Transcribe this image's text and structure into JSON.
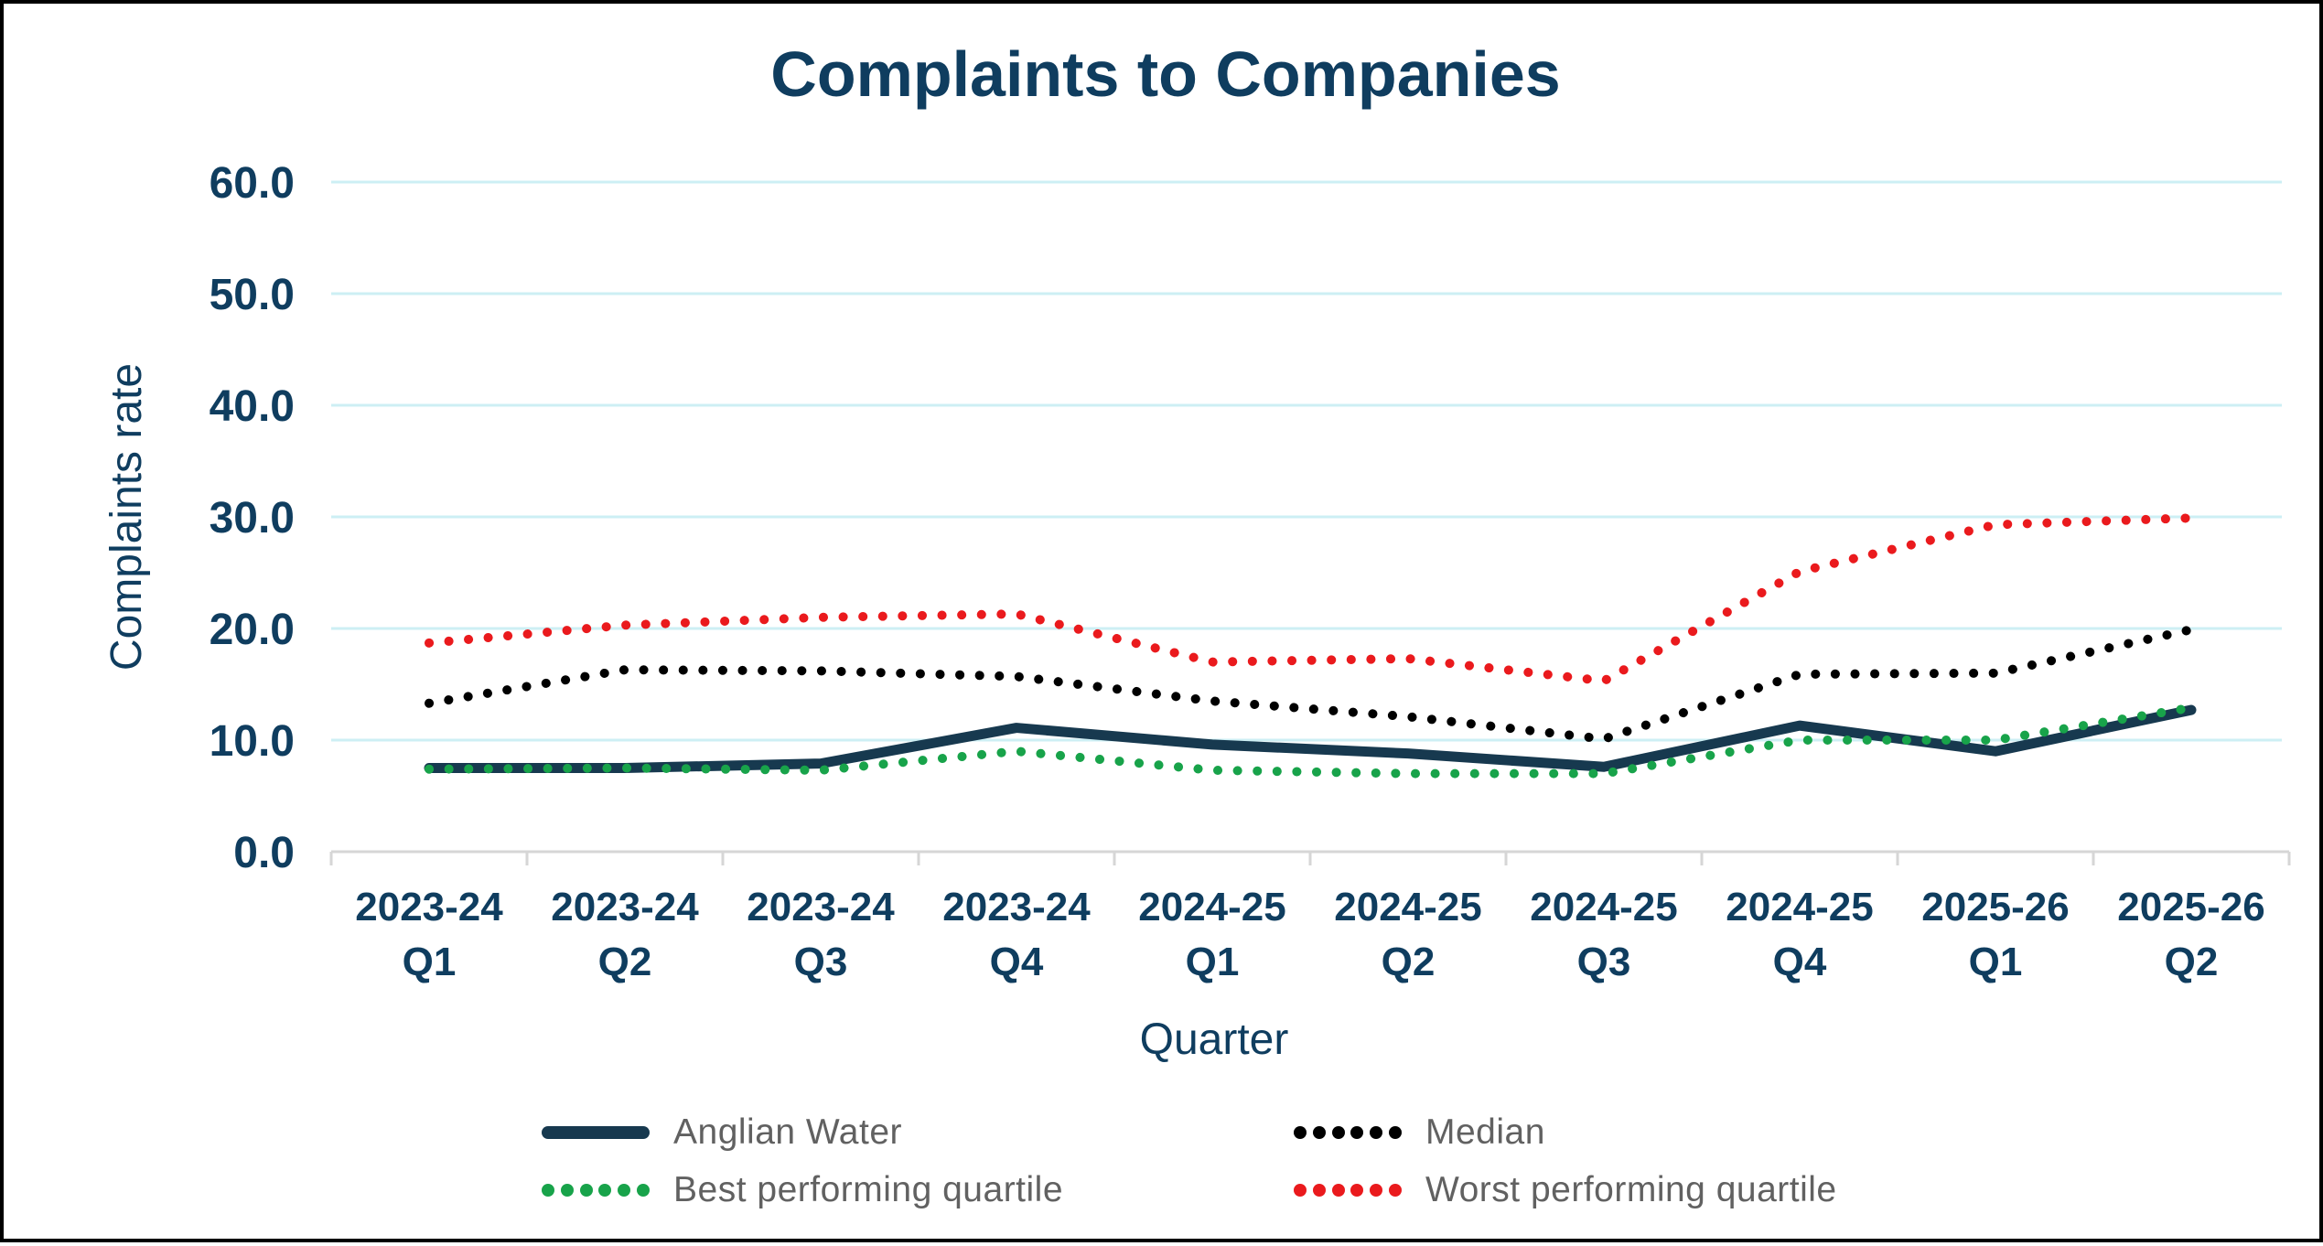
{
  "title": "Complaints to Companies",
  "y_axis": {
    "title": "Complaints rate",
    "tick_labels": [
      "0.0",
      "10.0",
      "20.0",
      "30.0",
      "40.0",
      "50.0",
      "60.0"
    ]
  },
  "x_axis": {
    "title": "Quarter"
  },
  "chart_data": {
    "type": "line",
    "title": "Complaints to Companies",
    "xlabel": "Quarter",
    "ylabel": "Complaints rate",
    "ylim": [
      0,
      60
    ],
    "ytick_step": 10,
    "grid": true,
    "legend_position": "bottom",
    "categories": [
      "2023-24 Q1",
      "2023-24 Q2",
      "2023-24 Q3",
      "2023-24 Q4",
      "2024-25 Q1",
      "2024-25 Q2",
      "2024-25 Q3",
      "2024-25 Q4",
      "2025-26 Q1",
      "2025-26 Q2"
    ],
    "series": [
      {
        "name": "Anglian Water",
        "style": "solid",
        "color": "#17394F",
        "values": [
          7.5,
          7.5,
          7.9,
          11.1,
          9.6,
          8.8,
          7.6,
          11.3,
          9.0,
          12.7
        ]
      },
      {
        "name": "Median",
        "style": "dotted",
        "color": "#000000",
        "values": [
          13.3,
          16.3,
          16.2,
          15.7,
          13.5,
          12.1,
          10.1,
          15.9,
          16.0,
          19.9
        ]
      },
      {
        "name": "Best performing quartile",
        "style": "dotted",
        "color": "#18A34A",
        "values": [
          7.4,
          7.5,
          7.3,
          9.0,
          7.3,
          7.0,
          7.0,
          10.0,
          10.0,
          12.9
        ]
      },
      {
        "name": "Worst performing quartile",
        "style": "dotted",
        "color": "#EA1A1D",
        "values": [
          18.7,
          20.3,
          21.0,
          21.3,
          17.0,
          17.3,
          15.3,
          25.1,
          29.3,
          29.9
        ]
      }
    ]
  },
  "colors": {
    "background": "#FFFFFF",
    "frame_border": "#000000",
    "gridline": "#CDEFF4",
    "axis_line": "#D6D6D6",
    "heading_text": "#0F3D5F",
    "legend_text": "#616161"
  }
}
